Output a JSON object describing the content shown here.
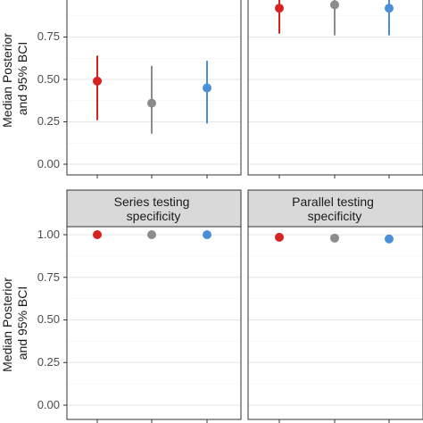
{
  "chart_data": [
    {
      "type": "scatter",
      "panel": "top-left",
      "title": "",
      "ylabel": [
        "Median Posterior",
        "and 95% BCI"
      ],
      "ylim": [
        0,
        1
      ],
      "yticks": [
        "0.00",
        "0.25",
        "0.50",
        "0.75"
      ],
      "categories": [
        "",
        "",
        ""
      ],
      "points": [
        {
          "median": 0.49,
          "lower": 0.26,
          "upper": 0.64,
          "color": "#d62221"
        },
        {
          "median": 0.36,
          "lower": 0.18,
          "upper": 0.58,
          "color": "#8c8c8c"
        },
        {
          "median": 0.45,
          "lower": 0.24,
          "upper": 0.61,
          "color": "#4a90d9"
        }
      ]
    },
    {
      "type": "scatter",
      "panel": "top-right",
      "title": "",
      "ylim": [
        0,
        1
      ],
      "categories": [
        "",
        "",
        ""
      ],
      "points": [
        {
          "median": 0.92,
          "lower": 0.77,
          "upper": 0.98,
          "color": "#d62221"
        },
        {
          "median": 0.94,
          "lower": 0.76,
          "upper": 0.99,
          "color": "#8c8c8c"
        },
        {
          "median": 0.92,
          "lower": 0.76,
          "upper": 0.98,
          "color": "#4a90d9"
        }
      ]
    },
    {
      "type": "scatter",
      "panel": "bottom-left",
      "title": [
        "Series testing",
        "specificity"
      ],
      "ylabel": [
        "Median Posterior",
        "and 95% BCI"
      ],
      "ylim": [
        0,
        1
      ],
      "yticks": [
        "0.00",
        "0.25",
        "0.50",
        "0.75",
        "1.00"
      ],
      "categories": [
        "",
        "",
        ""
      ],
      "points": [
        {
          "median": 1.0,
          "lower": 0.995,
          "upper": 1.0,
          "color": "#d62221"
        },
        {
          "median": 1.0,
          "lower": 0.995,
          "upper": 1.0,
          "color": "#8c8c8c"
        },
        {
          "median": 1.0,
          "lower": 0.995,
          "upper": 1.0,
          "color": "#4a90d9"
        }
      ]
    },
    {
      "type": "scatter",
      "panel": "bottom-right",
      "title": [
        "Parallel testing",
        "specificity"
      ],
      "ylim": [
        0,
        1
      ],
      "categories": [
        "",
        "",
        ""
      ],
      "points": [
        {
          "median": 0.985,
          "lower": 0.98,
          "upper": 0.99,
          "color": "#d62221"
        },
        {
          "median": 0.98,
          "lower": 0.975,
          "upper": 0.985,
          "color": "#8c8c8c"
        },
        {
          "median": 0.975,
          "lower": 0.97,
          "upper": 0.98,
          "color": "#4a90d9"
        }
      ]
    }
  ]
}
